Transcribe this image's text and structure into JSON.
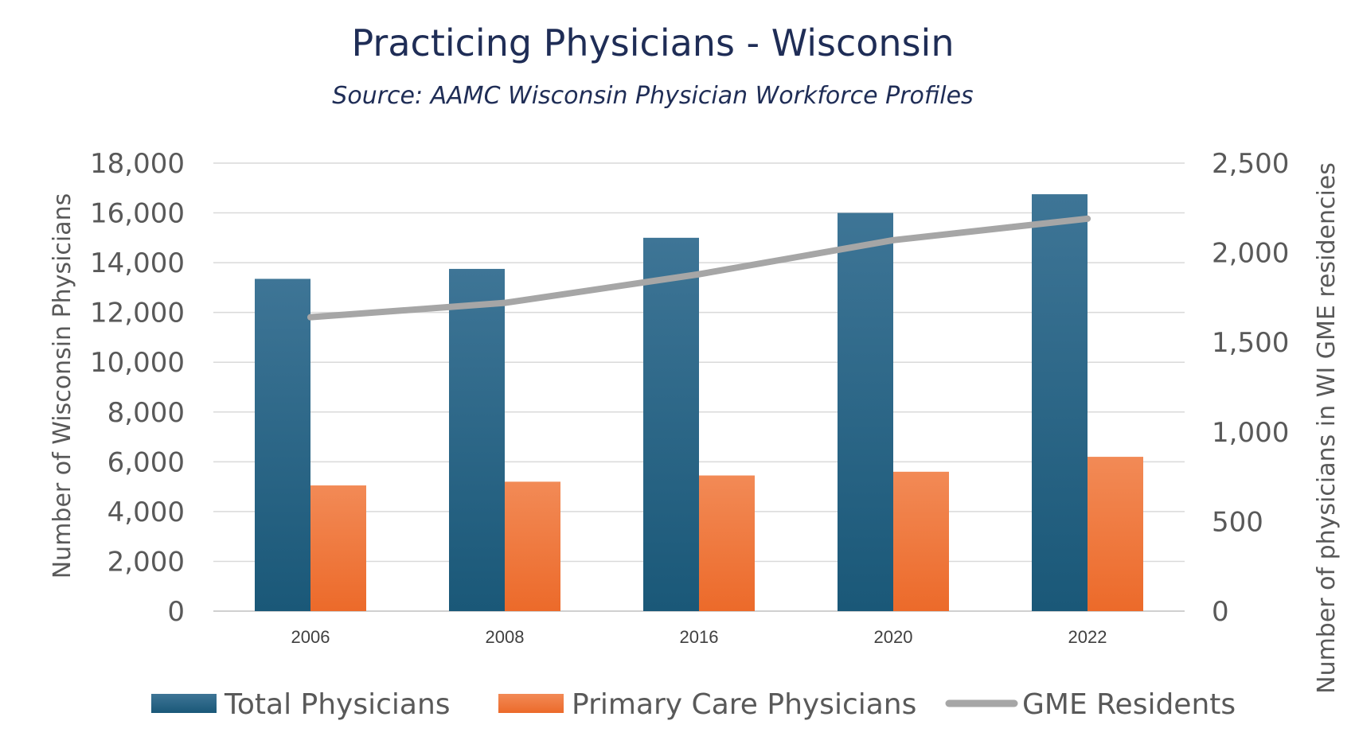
{
  "chart_data": {
    "type": "bar",
    "title": "Practicing Physicians - Wisconsin",
    "subtitle": "Source: AAMC Wisconsin Physician Workforce Profiles",
    "categories": [
      "2006",
      "2008",
      "2016",
      "2020",
      "2022"
    ],
    "series": [
      {
        "name": "Total Physicians",
        "type": "bar",
        "axis": "left",
        "color": "#1f5f85",
        "values": [
          13350,
          13750,
          15000,
          16000,
          16750
        ]
      },
      {
        "name": "Primary Care Physicians",
        "type": "bar",
        "axis": "left",
        "color": "#f07030",
        "values": [
          5050,
          5200,
          5450,
          5600,
          6200
        ]
      },
      {
        "name": "GME Residents",
        "type": "line",
        "axis": "right",
        "color": "#a6a6a6",
        "values": [
          1640,
          1720,
          1880,
          2070,
          2190
        ]
      }
    ],
    "ylabel": "Number of Wisconsin Physicians",
    "y2label": "Number of physicians in WI GME residencies",
    "ylim": [
      0,
      18000
    ],
    "y2lim": [
      0,
      2500
    ],
    "yticks": [
      "0",
      "2,000",
      "4,000",
      "6,000",
      "8,000",
      "10,000",
      "12,000",
      "14,000",
      "16,000",
      "18,000"
    ],
    "y2ticks": [
      "0",
      "500",
      "1,000",
      "1,500",
      "2,000",
      "2,500"
    ],
    "grid": true,
    "legend_position": "bottom"
  }
}
